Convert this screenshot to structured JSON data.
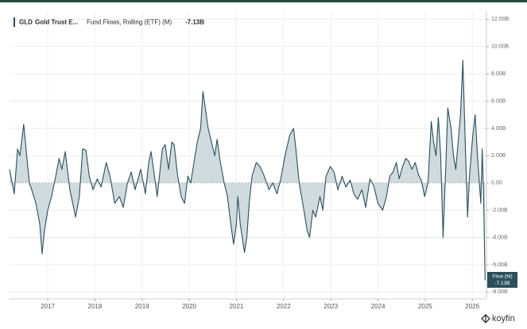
{
  "chart_data": {
    "type": "area",
    "ticker": "GLD",
    "name": "Gold Trust E...",
    "badge_title": "Flow (M)",
    "badge_value": "-7.13B",
    "logo": "koyfin",
    "grid": true,
    "xlim": [
      2016.19,
      2026.3
    ],
    "xticks": [
      2017,
      2018,
      2019,
      2020,
      2021,
      2022,
      2023,
      2024,
      2025,
      2026
    ],
    "ylim": [
      -8.5,
      12.6
    ],
    "yticks": [
      {
        "value": 12,
        "label": "12.00B"
      },
      {
        "value": 10,
        "label": "10.00B"
      },
      {
        "value": 8,
        "label": "8.00B"
      },
      {
        "value": 6,
        "label": "6.00B"
      },
      {
        "value": 4,
        "label": "4.00B"
      },
      {
        "value": 2,
        "label": "2.00B"
      },
      {
        "value": 0,
        "label": "0.00"
      },
      {
        "value": -2,
        "label": "-2.00B"
      },
      {
        "value": -4,
        "label": "-4.00B"
      },
      {
        "value": -6,
        "label": "-6.00B"
      },
      {
        "value": -8,
        "label": "-8.00B"
      }
    ],
    "x": [
      2016.19,
      2016.29,
      2016.36,
      2016.41,
      2016.49,
      2016.61,
      2016.66,
      2016.75,
      2016.83,
      2016.88,
      2016.93,
      2017.0,
      2017.08,
      2017.17,
      2017.24,
      2017.3,
      2017.37,
      2017.47,
      2017.59,
      2017.67,
      2017.74,
      2017.81,
      2017.88,
      2017.96,
      2018.05,
      2018.13,
      2018.24,
      2018.32,
      2018.42,
      2018.52,
      2018.6,
      2018.69,
      2018.77,
      2018.85,
      2018.97,
      2019.07,
      2019.14,
      2019.19,
      2019.27,
      2019.32,
      2019.43,
      2019.49,
      2019.56,
      2019.63,
      2019.68,
      2019.75,
      2019.83,
      2019.9,
      2019.97,
      2020.03,
      2020.1,
      2020.17,
      2020.24,
      2020.29,
      2020.34,
      2020.4,
      2020.47,
      2020.54,
      2020.59,
      2020.66,
      2020.74,
      2020.81,
      2020.88,
      2020.94,
      2021.0,
      2021.03,
      2021.08,
      2021.17,
      2021.22,
      2021.27,
      2021.33,
      2021.42,
      2021.5,
      2021.59,
      2021.69,
      2021.77,
      2021.86,
      2021.94,
      2022.03,
      2022.13,
      2022.21,
      2022.26,
      2022.33,
      2022.38,
      2022.43,
      2022.5,
      2022.55,
      2022.62,
      2022.68,
      2022.77,
      2022.83,
      2022.9,
      2022.99,
      2023.07,
      2023.15,
      2023.24,
      2023.32,
      2023.41,
      2023.49,
      2023.57,
      2023.66,
      2023.74,
      2023.83,
      2023.91,
      2024.0,
      2024.1,
      2024.18,
      2024.25,
      2024.32,
      2024.39,
      2024.45,
      2024.52,
      2024.59,
      2024.65,
      2024.72,
      2024.79,
      2024.86,
      2024.92,
      2024.99,
      2025.06,
      2025.13,
      2025.18,
      2025.23,
      2025.28,
      2025.33,
      2025.38,
      2025.43,
      2025.48,
      2025.55,
      2025.6,
      2025.65,
      2025.7,
      2025.75,
      2025.8,
      2025.85,
      2025.9,
      2025.94,
      2026.01,
      2026.06,
      2026.11,
      2026.14,
      2026.18,
      2026.21,
      2026.24,
      2026.27
    ],
    "series": [
      {
        "name": "Fund Flows, Rolling (ETF) (M)",
        "last_value_label": "-7.13B",
        "color": "#2c4f5c",
        "fill": "#c7d5d8",
        "values": [
          1.0,
          -0.8,
          2.5,
          2.0,
          4.3,
          0,
          -0.5,
          -1.5,
          -3,
          -5.2,
          -3.5,
          -2,
          -1,
          0.5,
          1.8,
          1.0,
          2.3,
          -0.5,
          -2.5,
          -1,
          2.5,
          2.4,
          0.5,
          -0.5,
          0.3,
          -0.3,
          1.5,
          0.5,
          -1.5,
          -1,
          -1.8,
          0,
          0.8,
          -0.5,
          1.0,
          -0.8,
          1.5,
          2.3,
          0.3,
          -1,
          2.5,
          2.8,
          1.0,
          3.0,
          2.8,
          0.6,
          -1,
          -1.5,
          0.5,
          0,
          1.5,
          3,
          4,
          6.7,
          5.5,
          4,
          3,
          2,
          3.2,
          1.5,
          0,
          -1,
          -3,
          -4.5,
          -3,
          -1,
          -3,
          -5.1,
          -4,
          -1.5,
          0.5,
          1.5,
          1.2,
          0.5,
          -0.5,
          0,
          -0.8,
          0.3,
          2.0,
          3.5,
          4.0,
          2.5,
          0,
          -1,
          -2,
          -3.5,
          -4,
          -2,
          -2.5,
          -1,
          -2,
          0.5,
          1.2,
          0.8,
          -0.5,
          0.5,
          -0.3,
          0.2,
          -0.8,
          -1.2,
          -0.5,
          -1.8,
          0.3,
          -0.2,
          -1.5,
          -2,
          -1,
          0.5,
          0.8,
          1.5,
          0.3,
          1.2,
          1.8,
          1.6,
          1.0,
          1.5,
          0.6,
          0.2,
          -1,
          0,
          4.5,
          3,
          2,
          4.8,
          2,
          -4,
          0.5,
          5.5,
          4,
          2,
          1,
          3,
          5,
          9,
          3,
          -2.5,
          0.5,
          3.5,
          5,
          2,
          0.5,
          -1.5,
          2.5,
          -1,
          -7.13
        ]
      }
    ]
  }
}
